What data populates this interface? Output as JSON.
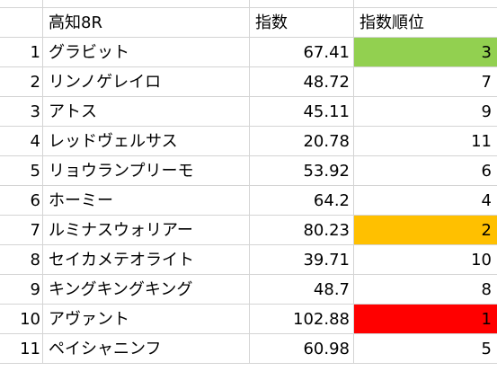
{
  "header": {
    "name": "高知8R",
    "index": "指数",
    "rank": "指数順位"
  },
  "rows": [
    {
      "num": "1",
      "name": "グラビット",
      "index": "67.41",
      "rank": "3",
      "fill": "#92d050"
    },
    {
      "num": "2",
      "name": "リンノゲレイロ",
      "index": "48.72",
      "rank": "7",
      "fill": ""
    },
    {
      "num": "3",
      "name": "アトス",
      "index": "45.11",
      "rank": "9",
      "fill": ""
    },
    {
      "num": "4",
      "name": "レッドヴェルサス",
      "index": "20.78",
      "rank": "11",
      "fill": ""
    },
    {
      "num": "5",
      "name": "リョウランプリーモ",
      "index": "53.92",
      "rank": "6",
      "fill": ""
    },
    {
      "num": "6",
      "name": "ホーミー",
      "index": "64.2",
      "rank": "4",
      "fill": ""
    },
    {
      "num": "7",
      "name": "ルミナスウォリアー",
      "index": "80.23",
      "rank": "2",
      "fill": "#ffc000"
    },
    {
      "num": "8",
      "name": "セイカメテオライト",
      "index": "39.71",
      "rank": "10",
      "fill": ""
    },
    {
      "num": "9",
      "name": "キングキングキング",
      "index": "48.7",
      "rank": "8",
      "fill": ""
    },
    {
      "num": "10",
      "name": "アヴァント",
      "index": "102.88",
      "rank": "1",
      "fill": "#ff0000"
    },
    {
      "num": "11",
      "name": "ペイシャニンフ",
      "index": "60.98",
      "rank": "5",
      "fill": ""
    }
  ]
}
